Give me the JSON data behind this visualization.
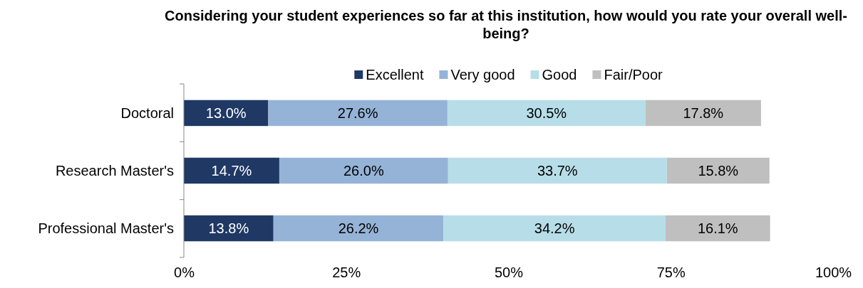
{
  "chart_data": {
    "type": "bar",
    "orientation": "horizontal",
    "stacked": true,
    "title": "Considering your student experiences so far at this institution, how would you rate your overall well-being?",
    "categories": [
      "Doctoral",
      "Research Master's",
      "Professional Master's"
    ],
    "series": [
      {
        "name": "Excellent",
        "color": "#1f3864",
        "values": [
          13.0,
          14.7,
          13.8
        ]
      },
      {
        "name": "Very good",
        "color": "#95b3d7",
        "values": [
          27.6,
          26.0,
          26.2
        ]
      },
      {
        "name": "Good",
        "color": "#b7dee8",
        "values": [
          30.5,
          33.7,
          34.2
        ]
      },
      {
        "name": "Fair/Poor",
        "color": "#bfbfbf",
        "values": [
          17.8,
          15.8,
          16.1
        ]
      }
    ],
    "xlim": [
      0,
      100
    ],
    "xticks": [
      {
        "value": 0,
        "label": "0%"
      },
      {
        "value": 25,
        "label": "25%"
      },
      {
        "value": 50,
        "label": "50%"
      },
      {
        "value": 75,
        "label": "75%"
      },
      {
        "value": 100,
        "label": "100%"
      }
    ],
    "value_labels": [
      [
        "13.0%",
        "14.7%",
        "13.8%"
      ],
      [
        "27.6%",
        "26.0%",
        "26.2%"
      ],
      [
        "30.5%",
        "33.7%",
        "34.2%"
      ],
      [
        "17.8%",
        "15.8%",
        "16.1%"
      ]
    ],
    "legend": "top",
    "grid": false
  }
}
